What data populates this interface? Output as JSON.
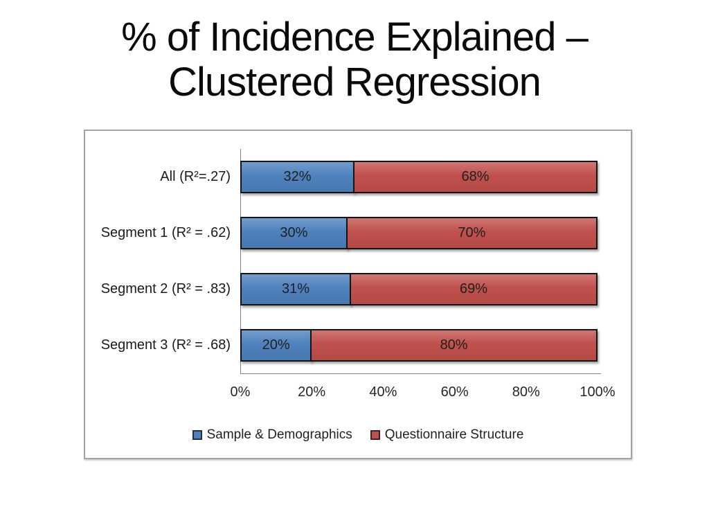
{
  "slide": {
    "title": "% of Incidence Explained – Clustered Regression"
  },
  "chart_data": {
    "type": "bar",
    "orientation": "horizontal",
    "stacked": true,
    "title": "",
    "xlabel": "",
    "ylabel": "",
    "categories": [
      "All (R²=.27)",
      "Segment 1 (R² = .62)",
      "Segment 2 (R² = .83)",
      "Segment 3 (R² = .68)"
    ],
    "series": [
      {
        "name": "Sample & Demographics",
        "color": "#4F81BD",
        "values": [
          32,
          30,
          31,
          20
        ]
      },
      {
        "name": "Questionnaire Structure",
        "color": "#C0504D",
        "values": [
          68,
          70,
          69,
          80
        ]
      }
    ],
    "value_suffix": "%",
    "bar_border_color": "#141414",
    "x_ticks": [
      "0%",
      "20%",
      "40%",
      "60%",
      "80%",
      "100%"
    ],
    "xlim": [
      0,
      100
    ],
    "grid": false,
    "legend_position": "bottom",
    "data_labels": true
  }
}
